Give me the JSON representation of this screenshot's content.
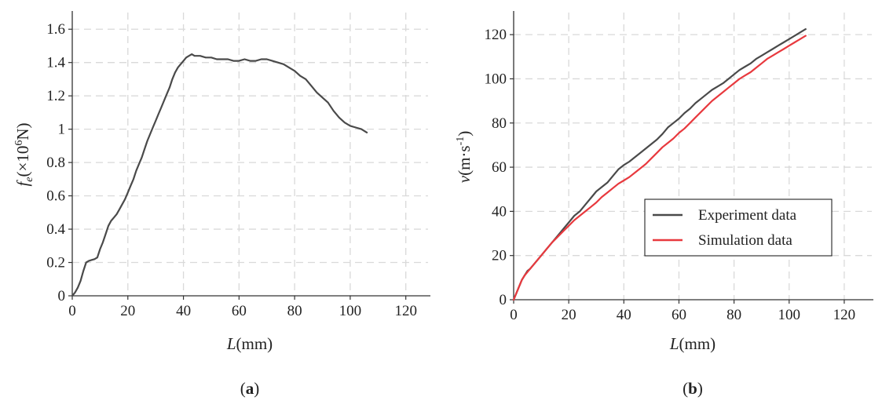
{
  "colors": {
    "experiment": "#4a4a4a",
    "simulation": "#e8393e",
    "grid": "#d9d9d9",
    "axis": "#333333"
  },
  "captions": {
    "a": {
      "open": "(",
      "letter": "a",
      "close": ")"
    },
    "b": {
      "open": "(",
      "letter": "b",
      "close": ")"
    }
  },
  "chart_data": [
    {
      "type": "line",
      "panel": "a",
      "title": "",
      "xlabel": {
        "var": "L",
        "unit": "(mm)"
      },
      "ylabel": {
        "var": "f",
        "sub": "e",
        "pre": "(×10",
        "sup": "6",
        "post": "N)"
      },
      "xlim": [
        0,
        128
      ],
      "ylim": [
        0,
        1.7
      ],
      "xticks": [
        0,
        20,
        40,
        60,
        80,
        100,
        120
      ],
      "yticks": [
        0,
        0.2,
        0.4,
        0.6,
        0.8,
        1,
        1.2,
        1.4,
        1.6
      ],
      "ytick_labels": [
        "0",
        "0.2",
        "0.4",
        "0.6",
        "0.8",
        "1",
        "1.2",
        "1.4",
        "1.6"
      ],
      "grid": true,
      "series": [
        {
          "name": "Experiment data",
          "color": "#4a4a4a",
          "x": [
            0,
            1,
            2,
            3,
            4,
            5,
            6,
            7,
            8,
            9,
            10,
            11,
            12,
            13,
            14,
            15,
            16,
            17,
            18,
            19,
            20,
            21,
            22,
            23,
            24,
            25,
            26,
            27,
            28,
            29,
            30,
            31,
            32,
            33,
            34,
            35,
            36,
            37,
            38,
            39,
            40,
            41,
            42,
            43,
            44,
            45,
            46,
            48,
            50,
            52,
            54,
            56,
            58,
            60,
            62,
            64,
            66,
            68,
            70,
            72,
            74,
            76,
            78,
            80,
            82,
            84,
            86,
            88,
            90,
            92,
            94,
            96,
            98,
            100,
            102,
            104,
            106
          ],
          "y": [
            0.0,
            0.02,
            0.05,
            0.09,
            0.15,
            0.2,
            0.21,
            0.215,
            0.22,
            0.23,
            0.28,
            0.32,
            0.37,
            0.42,
            0.45,
            0.47,
            0.49,
            0.52,
            0.55,
            0.58,
            0.62,
            0.66,
            0.7,
            0.75,
            0.79,
            0.83,
            0.88,
            0.93,
            0.97,
            1.01,
            1.05,
            1.09,
            1.13,
            1.17,
            1.21,
            1.25,
            1.3,
            1.34,
            1.37,
            1.39,
            1.41,
            1.43,
            1.44,
            1.45,
            1.44,
            1.44,
            1.44,
            1.43,
            1.43,
            1.42,
            1.42,
            1.42,
            1.41,
            1.41,
            1.42,
            1.41,
            1.41,
            1.42,
            1.42,
            1.41,
            1.4,
            1.39,
            1.37,
            1.35,
            1.32,
            1.3,
            1.26,
            1.22,
            1.19,
            1.16,
            1.11,
            1.07,
            1.04,
            1.02,
            1.01,
            1.0,
            0.98
          ]
        }
      ]
    },
    {
      "type": "line",
      "panel": "b",
      "title": "",
      "xlabel": {
        "var": "L",
        "unit": "(mm)"
      },
      "ylabel": {
        "var": "v",
        "pre": "(m·s",
        "sup": "-1",
        "post": ")"
      },
      "xlim": [
        0,
        130
      ],
      "ylim": [
        0,
        130
      ],
      "xticks": [
        0,
        20,
        40,
        60,
        80,
        100,
        120
      ],
      "yticks": [
        0,
        20,
        40,
        60,
        80,
        100,
        120
      ],
      "ytick_labels": [
        "0",
        "20",
        "40",
        "60",
        "80",
        "100",
        "120"
      ],
      "grid": true,
      "legend_position": "center-right",
      "series": [
        {
          "name": "Experiment data",
          "color": "#4a4a4a",
          "x": [
            0,
            1,
            2,
            3,
            4,
            5,
            6,
            8,
            10,
            12,
            14,
            16,
            18,
            20,
            22,
            24,
            26,
            28,
            30,
            32,
            34,
            36,
            38,
            40,
            42,
            44,
            46,
            48,
            50,
            52,
            54,
            56,
            58,
            60,
            62,
            64,
            66,
            68,
            70,
            72,
            74,
            76,
            78,
            80,
            82,
            84,
            86,
            88,
            90,
            92,
            94,
            96,
            98,
            100,
            102,
            104,
            106
          ],
          "y": [
            0,
            3,
            6,
            9,
            11,
            13,
            14,
            17,
            20,
            23,
            26,
            29,
            32,
            35,
            38,
            40,
            43,
            46,
            49,
            51,
            53,
            56,
            59,
            61,
            62.5,
            64.5,
            66.5,
            68.5,
            70.5,
            72.5,
            75,
            78,
            80,
            82,
            84.5,
            86.5,
            89,
            91,
            93,
            95,
            96.5,
            98,
            100,
            102,
            104,
            105.5,
            107,
            109,
            110.5,
            112,
            113.5,
            115,
            116.5,
            118,
            119.5,
            121,
            122.5
          ]
        },
        {
          "name": "Simulation data",
          "color": "#e8393e",
          "x": [
            0,
            1,
            2,
            3,
            4,
            5,
            6,
            8,
            10,
            12,
            14,
            16,
            18,
            20,
            22,
            24,
            26,
            28,
            30,
            32,
            34,
            36,
            38,
            40,
            42,
            44,
            46,
            48,
            50,
            52,
            54,
            56,
            58,
            60,
            62,
            64,
            66,
            68,
            70,
            72,
            74,
            76,
            78,
            80,
            82,
            84,
            86,
            88,
            90,
            92,
            94,
            96,
            98,
            100,
            102,
            104,
            106
          ],
          "y": [
            0,
            3,
            6,
            9,
            11,
            12.5,
            14,
            17,
            20,
            23,
            26,
            28.5,
            31,
            33.5,
            36,
            38,
            40,
            42,
            44,
            46.5,
            48.5,
            50.5,
            52.5,
            54,
            55.5,
            57.5,
            59.5,
            61.5,
            64,
            66.5,
            69,
            71,
            73,
            75.5,
            77.5,
            80,
            82.5,
            85,
            87.5,
            90,
            92,
            94,
            96,
            98,
            100,
            101.5,
            103,
            105,
            107,
            109,
            110.5,
            112,
            113.5,
            115,
            116.5,
            118,
            119.5
          ]
        }
      ]
    }
  ]
}
